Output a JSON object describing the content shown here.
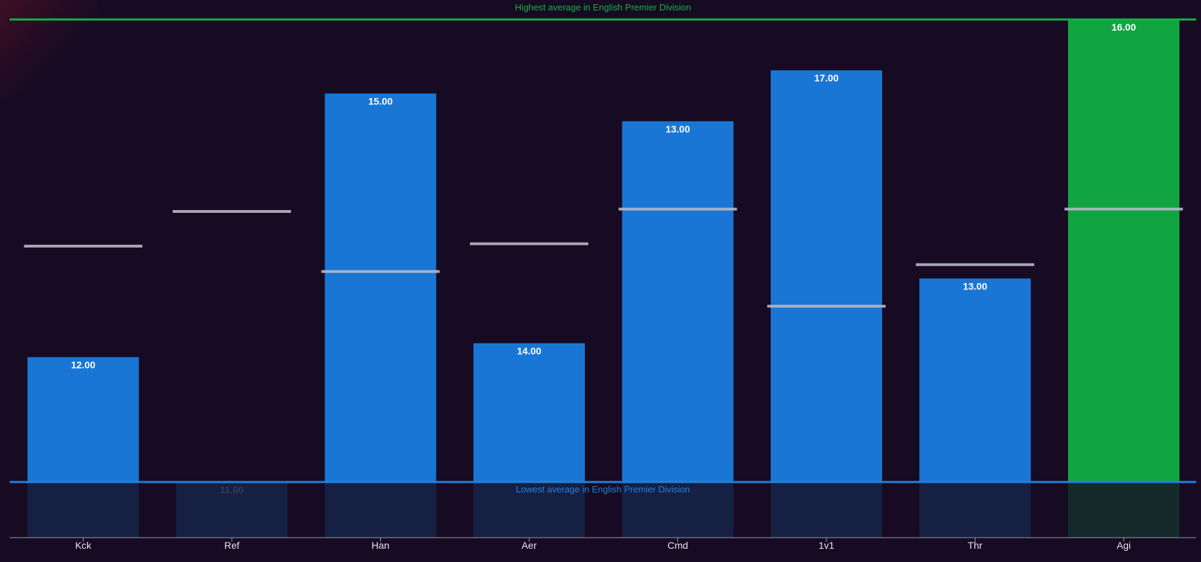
{
  "chart_data": {
    "type": "bar",
    "categories": [
      "Kck",
      "Ref",
      "Han",
      "Aer",
      "Cmd",
      "1v1",
      "Thr",
      "Agi"
    ],
    "values": [
      12,
      11,
      15,
      14,
      13,
      17,
      13,
      16
    ],
    "value_labels": [
      "12.00",
      "11.00",
      "15.00",
      "14.00",
      "13.00",
      "17.00",
      "13.00",
      "16.00"
    ],
    "bar_fill_fraction": [
      0.27,
      0.0,
      0.84,
      0.3,
      0.78,
      0.89,
      0.44,
      1.0
    ],
    "comparison_marker_fraction": [
      0.51,
      0.585,
      0.455,
      0.515,
      0.59,
      0.38,
      0.47,
      0.59
    ],
    "highlighted_category": "Agi",
    "reference_lines": {
      "highest_label": "Highest average in English Premier Division",
      "lowest_label": "Lowest average in English Premier Division"
    },
    "colors": {
      "background": "#160b22",
      "bar": "#1a76d4",
      "bar_highlight": "#10a541",
      "bar_below_floor": "#162043",
      "bar_below_floor_highlight": "#152a2a",
      "highest_line": "#14b147",
      "lowest_line": "#1f82e0",
      "marker": "#b8b8c4",
      "faint_value_label": "#3a3950"
    },
    "grid": false,
    "legend": "none"
  }
}
